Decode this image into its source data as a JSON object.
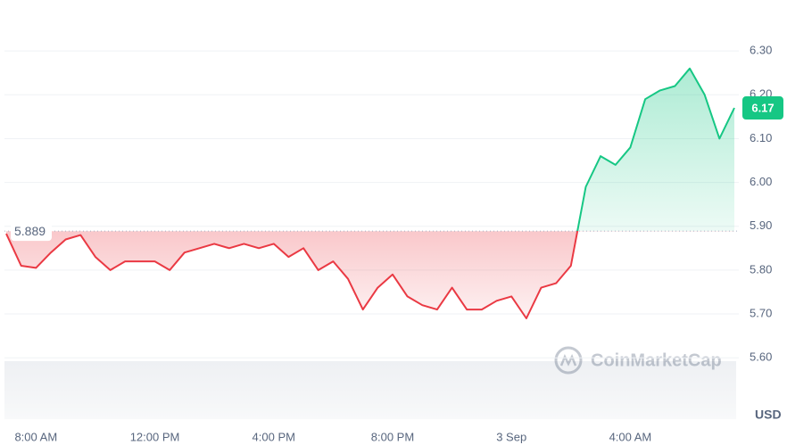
{
  "chart_data": {
    "type": "line",
    "unit": "USD",
    "watermark": "CoinMarketCap",
    "baseline": 5.889,
    "categories": [
      null,
      null,
      "8:00 AM",
      null,
      null,
      null,
      null,
      null,
      null,
      null,
      "12:00 PM",
      null,
      null,
      null,
      null,
      null,
      null,
      null,
      "4:00 PM",
      null,
      null,
      null,
      null,
      null,
      null,
      null,
      "8:00 PM",
      null,
      null,
      null,
      null,
      null,
      null,
      null,
      "3 Sep",
      null,
      null,
      null,
      null,
      null,
      null,
      null,
      "4:00 AM",
      null,
      null,
      null,
      null,
      null,
      null,
      null
    ],
    "values": [
      5.883,
      5.81,
      5.805,
      5.84,
      5.87,
      5.88,
      5.83,
      5.8,
      5.82,
      5.82,
      5.82,
      5.8,
      5.84,
      5.85,
      5.86,
      5.85,
      5.86,
      5.85,
      5.86,
      5.83,
      5.85,
      5.8,
      5.82,
      5.78,
      5.71,
      5.76,
      5.79,
      5.74,
      5.72,
      5.71,
      5.76,
      5.71,
      5.71,
      5.73,
      5.74,
      5.69,
      5.76,
      5.77,
      5.81,
      5.99,
      6.06,
      6.04,
      6.08,
      6.19,
      6.21,
      6.22,
      6.26,
      6.2,
      6.1,
      6.17
    ],
    "up_color": "#16c784",
    "down_color": "#ea3943",
    "ylim": [
      5.46,
      6.4
    ],
    "yticks": [
      {
        "value": 5.6,
        "label": "5.60"
      },
      {
        "value": 5.7,
        "label": "5.70"
      },
      {
        "value": 5.8,
        "label": "5.80"
      },
      {
        "value": 5.9,
        "label": "5.90"
      },
      {
        "value": 6.0,
        "label": "6.00"
      },
      {
        "value": 6.1,
        "label": "6.10"
      },
      {
        "value": 6.2,
        "label": "6.20"
      },
      {
        "value": 6.3,
        "label": "6.30"
      }
    ],
    "grid": true
  }
}
